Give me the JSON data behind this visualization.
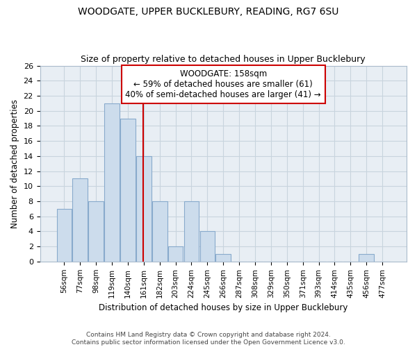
{
  "title": "WOODGATE, UPPER BUCKLEBURY, READING, RG7 6SU",
  "subtitle": "Size of property relative to detached houses in Upper Bucklebury",
  "xlabel": "Distribution of detached houses by size in Upper Bucklebury",
  "ylabel": "Number of detached properties",
  "footer_line1": "Contains HM Land Registry data © Crown copyright and database right 2024.",
  "footer_line2": "Contains public sector information licensed under the Open Government Licence v3.0.",
  "bar_labels": [
    "56sqm",
    "77sqm",
    "98sqm",
    "119sqm",
    "140sqm",
    "161sqm",
    "182sqm",
    "203sqm",
    "224sqm",
    "245sqm",
    "266sqm",
    "287sqm",
    "308sqm",
    "329sqm",
    "350sqm",
    "371sqm",
    "393sqm",
    "414sqm",
    "435sqm",
    "456sqm",
    "477sqm"
  ],
  "bar_values": [
    7,
    11,
    8,
    21,
    19,
    14,
    8,
    2,
    8,
    4,
    1,
    0,
    0,
    0,
    0,
    0,
    0,
    0,
    0,
    1,
    0
  ],
  "bar_color": "#ccdcec",
  "bar_edgecolor": "#88aacc",
  "property_label": "WOODGATE: 158sqm",
  "annotation_line1": "← 59% of detached houses are smaller (61)",
  "annotation_line2": "40% of semi-detached houses are larger (41) →",
  "vline_color": "#cc0000",
  "vline_x_index": 4.95,
  "annotation_box_color": "#ffffff",
  "annotation_box_edgecolor": "#cc0000",
  "ylim": [
    0,
    26
  ],
  "yticks": [
    0,
    2,
    4,
    6,
    8,
    10,
    12,
    14,
    16,
    18,
    20,
    22,
    24,
    26
  ],
  "background_color": "#ffffff",
  "plot_bg_color": "#e8eef4",
  "grid_color": "#c8d4de"
}
